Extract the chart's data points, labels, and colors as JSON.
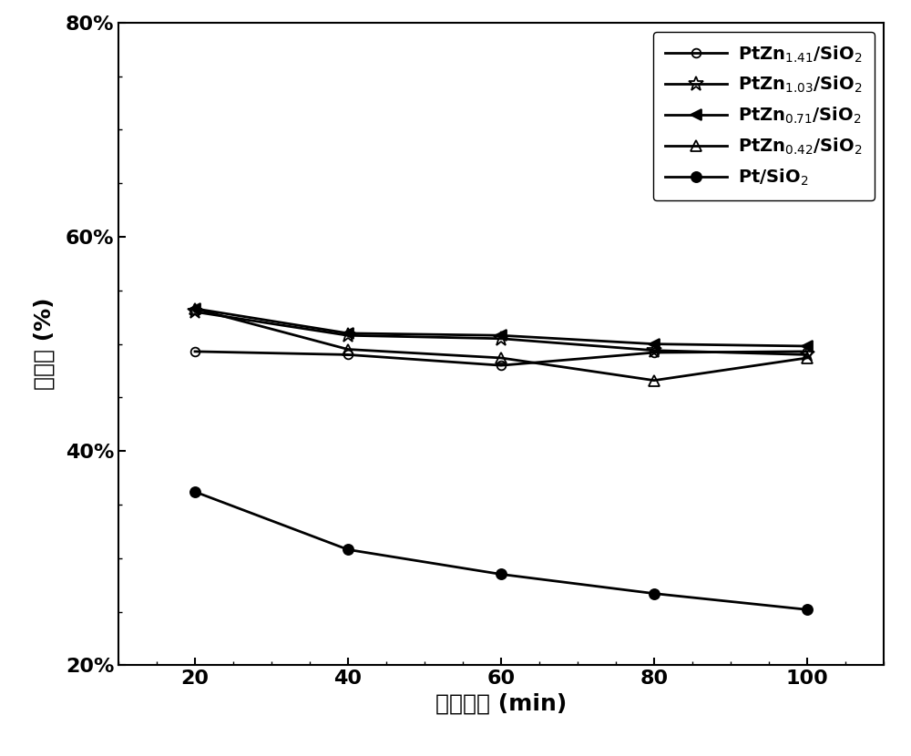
{
  "x": [
    20,
    40,
    60,
    80,
    100
  ],
  "series": [
    {
      "label": "PtZn$_{1.41}$/SiO$_2$",
      "y": [
        0.493,
        0.49,
        0.48,
        0.492,
        0.493
      ],
      "marker": "o",
      "marker_size": 7,
      "fillstyle": "none",
      "linewidth": 2.0
    },
    {
      "label": "PtZn$_{1.03}$/SiO$_2$",
      "y": [
        0.53,
        0.508,
        0.505,
        0.494,
        0.49
      ],
      "marker": "star",
      "marker_size": 12,
      "fillstyle": "none",
      "linewidth": 2.0
    },
    {
      "label": "PtZn$_{0.71}$/SiO$_2$",
      "y": [
        0.533,
        0.51,
        0.508,
        0.5,
        0.498
      ],
      "marker": "<",
      "marker_size": 8,
      "fillstyle": "full",
      "linewidth": 2.0
    },
    {
      "label": "PtZn$_{0.42}$/SiO$_2$",
      "y": [
        0.533,
        0.495,
        0.487,
        0.466,
        0.487
      ],
      "marker": "^",
      "marker_size": 8,
      "fillstyle": "none",
      "linewidth": 2.0
    },
    {
      "label": "Pt/SiO$_2$",
      "y": [
        0.362,
        0.308,
        0.285,
        0.267,
        0.252
      ],
      "marker": "o",
      "marker_size": 8,
      "fillstyle": "full",
      "linewidth": 2.0
    }
  ],
  "xlabel": "反应时间 (min)",
  "ylabel": "转化率 (%)",
  "xlim": [
    10,
    110
  ],
  "ylim": [
    0.2,
    0.8
  ],
  "xticks": [
    20,
    40,
    60,
    80,
    100
  ],
  "yticks": [
    0.2,
    0.4,
    0.6,
    0.8
  ],
  "ytick_labels": [
    "20%",
    "40%",
    "60%",
    "80%"
  ],
  "font_size_axis_label": 18,
  "font_size_tick": 16,
  "font_size_legend": 14,
  "background_color": "#ffffff"
}
